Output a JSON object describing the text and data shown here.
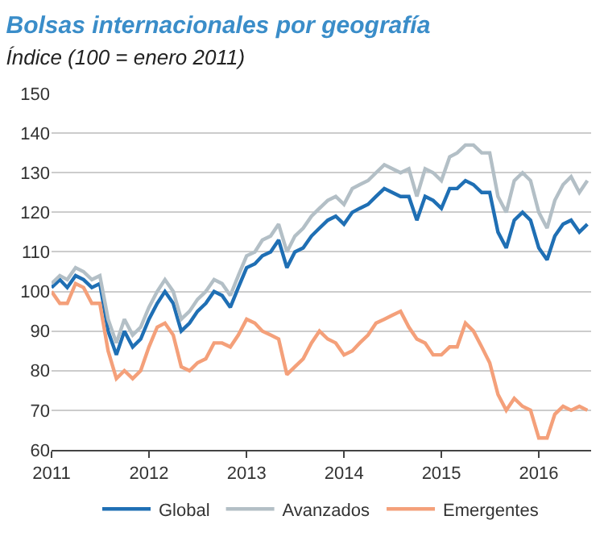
{
  "chart_data": {
    "type": "line",
    "title": "Bolsas internacionales por geografía",
    "subtitle": "Índice (100 = enero 2011)",
    "x": [
      "2011-01",
      "2011-02",
      "2011-03",
      "2011-04",
      "2011-05",
      "2011-06",
      "2011-07",
      "2011-08",
      "2011-09",
      "2011-10",
      "2011-11",
      "2011-12",
      "2012-01",
      "2012-02",
      "2012-03",
      "2012-04",
      "2012-05",
      "2012-06",
      "2012-07",
      "2012-08",
      "2012-09",
      "2012-10",
      "2012-11",
      "2012-12",
      "2013-01",
      "2013-02",
      "2013-03",
      "2013-04",
      "2013-05",
      "2013-06",
      "2013-07",
      "2013-08",
      "2013-09",
      "2013-10",
      "2013-11",
      "2013-12",
      "2014-01",
      "2014-02",
      "2014-03",
      "2014-04",
      "2014-05",
      "2014-06",
      "2014-07",
      "2014-08",
      "2014-09",
      "2014-10",
      "2014-11",
      "2014-12",
      "2015-01",
      "2015-02",
      "2015-03",
      "2015-04",
      "2015-05",
      "2015-06",
      "2015-07",
      "2015-08",
      "2015-09",
      "2015-10",
      "2015-11",
      "2015-12",
      "2016-01",
      "2016-02",
      "2016-03",
      "2016-04",
      "2016-05",
      "2016-06",
      "2016-07"
    ],
    "series": [
      {
        "name": "Global",
        "color": "#1f6fb4",
        "values": [
          101,
          103,
          101,
          104,
          103,
          101,
          102,
          90,
          84,
          90,
          86,
          88,
          93,
          97,
          100,
          97,
          90,
          92,
          95,
          97,
          100,
          99,
          96,
          101,
          106,
          107,
          109,
          110,
          113,
          106,
          110,
          111,
          114,
          116,
          118,
          119,
          117,
          120,
          121,
          122,
          124,
          126,
          125,
          124,
          124,
          118,
          124,
          123,
          121,
          126,
          126,
          128,
          127,
          125,
          125,
          115,
          111,
          118,
          120,
          118,
          111,
          108,
          114,
          117,
          118,
          115,
          117
        ]
      },
      {
        "name": "Avanzados",
        "color": "#b3bfc6",
        "values": [
          102,
          104,
          103,
          106,
          105,
          103,
          104,
          93,
          87,
          93,
          89,
          91,
          96,
          100,
          103,
          100,
          93,
          95,
          98,
          100,
          103,
          102,
          99,
          104,
          109,
          110,
          113,
          114,
          117,
          110,
          114,
          116,
          119,
          121,
          123,
          124,
          122,
          126,
          127,
          128,
          130,
          132,
          131,
          130,
          131,
          124,
          131,
          130,
          128,
          134,
          135,
          137,
          137,
          135,
          135,
          124,
          120,
          128,
          130,
          128,
          120,
          116,
          123,
          127,
          129,
          125,
          128
        ]
      },
      {
        "name": "Emergentes",
        "color": "#f4a07a",
        "values": [
          100,
          97,
          97,
          102,
          101,
          97,
          97,
          85,
          78,
          80,
          78,
          80,
          86,
          91,
          92,
          89,
          81,
          80,
          82,
          83,
          87,
          87,
          86,
          89,
          93,
          92,
          90,
          89,
          88,
          79,
          81,
          83,
          87,
          90,
          88,
          87,
          84,
          85,
          87,
          89,
          92,
          93,
          94,
          95,
          91,
          88,
          87,
          84,
          84,
          86,
          86,
          92,
          90,
          86,
          82,
          74,
          70,
          73,
          71,
          70,
          63,
          63,
          69,
          71,
          70,
          71,
          70
        ]
      }
    ],
    "xlim": [
      "2011-01-01",
      "2016-07-15"
    ],
    "xticks": [
      {
        "value": "2011-01-01",
        "label": "2011"
      },
      {
        "value": "2012-01-01",
        "label": "2012"
      },
      {
        "value": "2013-01-01",
        "label": "2013"
      },
      {
        "value": "2014-01-01",
        "label": "2014"
      },
      {
        "value": "2015-01-01",
        "label": "2015"
      },
      {
        "value": "2016-01-01",
        "label": "2016"
      }
    ],
    "ylim": [
      60,
      150
    ],
    "yticks": [
      60,
      70,
      80,
      90,
      100,
      110,
      120,
      130,
      140,
      150
    ],
    "grid": "y",
    "legend": "bottom",
    "line_style": "solid"
  }
}
